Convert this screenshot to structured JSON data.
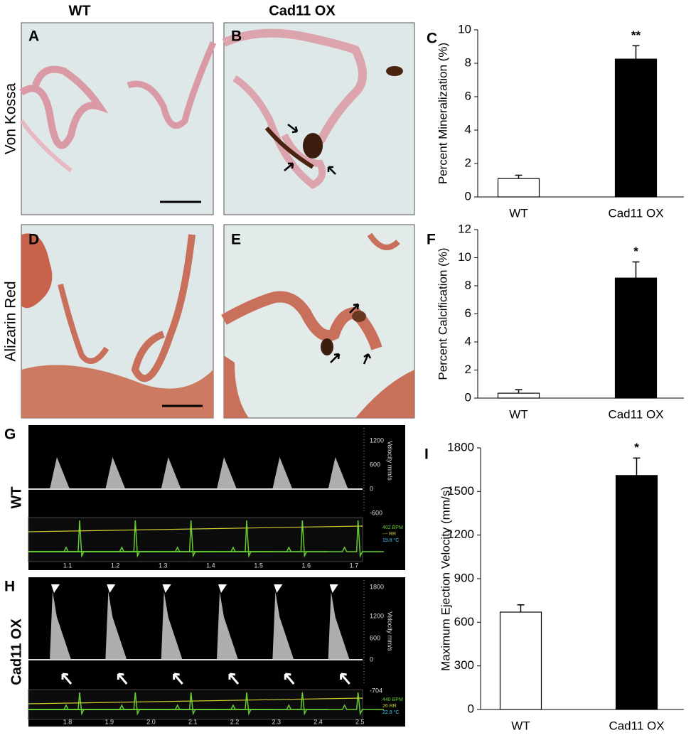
{
  "figure": {
    "column_headers": [
      "WT",
      "Cad11 OX"
    ],
    "row_labels": [
      "Von Kossa",
      "Alizarin Red"
    ],
    "panel_labels": [
      "A",
      "B",
      "C",
      "D",
      "E",
      "F",
      "G",
      "H",
      "I"
    ],
    "doppler": [
      {
        "group": "WT",
        "velocity_label": "Velocity mm/s",
        "velocity_ticks": [
          "1200",
          "600",
          "0",
          "-600"
        ],
        "vitals": [
          "402 BPM",
          "--- RR",
          "19.8 °C"
        ],
        "time_ticks": [
          "1.1",
          "1.2",
          "1.3",
          "1.4",
          "1.5",
          "1.6",
          "1.7"
        ]
      },
      {
        "group": "Cad11 OX",
        "velocity_label": "Velocity mm/s",
        "velocity_ticks": [
          "1800",
          "1200",
          "600",
          "0",
          "-704"
        ],
        "vitals": [
          "440 BPM",
          "26 RR",
          "22.8 °C"
        ],
        "time_ticks": [
          "1.8",
          "1.9",
          "2.0",
          "2.1",
          "2.2",
          "2.3",
          "2.4",
          "2.5"
        ]
      }
    ]
  },
  "chart_data": [
    {
      "type": "bar",
      "y_label": "Percent Mineralization (%)",
      "categories": [
        "WT",
        "Cad11 OX"
      ],
      "values": [
        1.1,
        8.25
      ],
      "errors": [
        0.2,
        0.8
      ],
      "colors": [
        "#ffffff",
        "#000000"
      ],
      "ylim": [
        0,
        10
      ],
      "yticks": [
        0,
        2,
        4,
        6,
        8,
        10
      ],
      "annotations": [
        {
          "category": "Cad11 OX",
          "text": "**"
        }
      ]
    },
    {
      "type": "bar",
      "y_label": "Percent Calcification (%)",
      "categories": [
        "WT",
        "Cad11 OX"
      ],
      "values": [
        0.35,
        8.55
      ],
      "errors": [
        0.25,
        1.15
      ],
      "colors": [
        "#ffffff",
        "#000000"
      ],
      "ylim": [
        0,
        12
      ],
      "yticks": [
        0,
        2,
        4,
        6,
        8,
        10,
        12
      ],
      "annotations": [
        {
          "category": "Cad11 OX",
          "text": "*"
        }
      ]
    },
    {
      "type": "bar",
      "y_label": "Maximum Ejection Velocity (mm/s)",
      "categories": [
        "WT",
        "Cad11 OX"
      ],
      "values": [
        670,
        1610
      ],
      "errors": [
        50,
        120
      ],
      "colors": [
        "#ffffff",
        "#000000"
      ],
      "ylim": [
        0,
        1800
      ],
      "yticks": [
        0,
        300,
        600,
        900,
        1200,
        1500,
        1800
      ],
      "annotations": [
        {
          "category": "Cad11 OX",
          "text": "*"
        }
      ]
    }
  ]
}
